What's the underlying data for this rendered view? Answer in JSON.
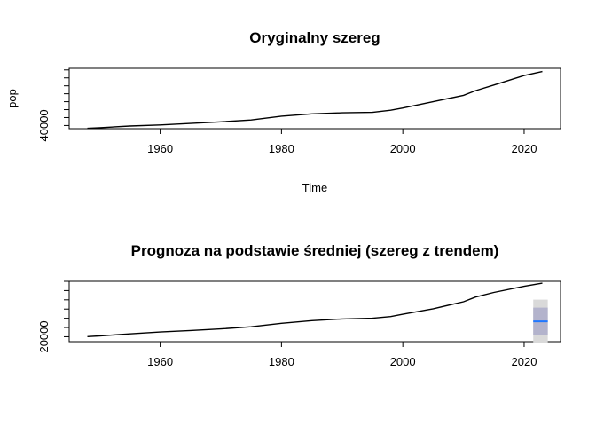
{
  "chart_data": [
    {
      "type": "line",
      "title": "Oryginalny szereg",
      "xlabel": "Time",
      "ylabel": "pop",
      "xlim": [
        1945,
        2026
      ],
      "ylim": [
        36000,
        112000
      ],
      "x_ticks": [
        1960,
        1980,
        2000,
        2020
      ],
      "y_ticks": [
        40000,
        50000,
        60000,
        70000,
        80000,
        90000,
        100000,
        110000
      ],
      "y_tick_labels": [
        "40000",
        "",
        "",
        "",
        "",
        "",
        "",
        ""
      ],
      "series": [
        {
          "x": [
            1948,
            1950,
            1955,
            1960,
            1965,
            1970,
            1975,
            1980,
            1985,
            1990,
            1995,
            1998,
            2000,
            2005,
            2010,
            2012,
            2015,
            2020,
            2023
          ],
          "y": [
            36400,
            37200,
            39300,
            40700,
            42600,
            44600,
            47000,
            51800,
            54700,
            56000,
            56600,
            59300,
            62000,
            70000,
            78000,
            84000,
            91000,
            103000,
            108000
          ]
        }
      ],
      "grid": false
    },
    {
      "type": "line",
      "title": "Prognoza na podstawie średniej (szereg z trendem)",
      "xlabel": "",
      "ylabel": "",
      "xlim": [
        1945,
        2026
      ],
      "ylim": [
        12000,
        110000
      ],
      "x_ticks": [
        1960,
        1980,
        2000,
        2020
      ],
      "y_ticks": [
        20000,
        35000,
        50000,
        65000,
        80000,
        95000,
        110000
      ],
      "y_tick_labels": [
        "20000",
        "",
        "",
        "",
        "",
        "",
        ""
      ],
      "series": [
        {
          "x": [
            1948,
            1950,
            1955,
            1960,
            1965,
            1970,
            1975,
            1980,
            1985,
            1990,
            1995,
            1998,
            2000,
            2005,
            2010,
            2012,
            2015,
            2020,
            2023
          ],
          "y": [
            20200,
            21300,
            24700,
            27700,
            30200,
            32800,
            36200,
            41800,
            46200,
            48900,
            50000,
            52800,
            56600,
            65500,
            76900,
            84500,
            92000,
            102000,
            107000
          ]
        }
      ],
      "forecast": {
        "x_start": 2021.5,
        "x_end": 2023.9,
        "mean": 45000,
        "pi80": [
          22700,
          67300
        ],
        "pi95": [
          9300,
          80300
        ],
        "mean_color": "#1f77ff",
        "pi80_color": "#b3b3cc",
        "pi95_color": "#d9d9d9"
      },
      "grid": false
    }
  ]
}
